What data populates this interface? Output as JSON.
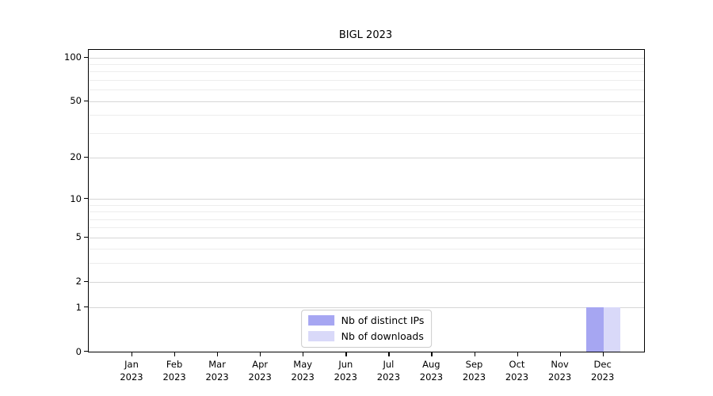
{
  "title": "BIGL 2023",
  "chart_data": {
    "type": "bar",
    "title": "BIGL 2023",
    "xlabel": "",
    "ylabel": "",
    "yscale": "log1p-symlog",
    "ylim": [
      0,
      112
    ],
    "grid": "horizontal-major-and-minor",
    "legend_position": "lower center",
    "categories": [
      {
        "month": "Jan",
        "year": "2023"
      },
      {
        "month": "Feb",
        "year": "2023"
      },
      {
        "month": "Mar",
        "year": "2023"
      },
      {
        "month": "Apr",
        "year": "2023"
      },
      {
        "month": "May",
        "year": "2023"
      },
      {
        "month": "Jun",
        "year": "2023"
      },
      {
        "month": "Jul",
        "year": "2023"
      },
      {
        "month": "Aug",
        "year": "2023"
      },
      {
        "month": "Sep",
        "year": "2023"
      },
      {
        "month": "Oct",
        "year": "2023"
      },
      {
        "month": "Nov",
        "year": "2023"
      },
      {
        "month": "Dec",
        "year": "2023"
      }
    ],
    "series": [
      {
        "name": "Nb of distinct IPs",
        "color": "#a6a6f2",
        "values": [
          0,
          0,
          0,
          0,
          0,
          0,
          0,
          0,
          0,
          0,
          0,
          1
        ]
      },
      {
        "name": "Nb of downloads",
        "color": "#d9d9f9",
        "values": [
          0,
          0,
          0,
          0,
          0,
          0,
          0,
          0,
          0,
          0,
          0,
          1
        ]
      }
    ],
    "ytick_labels": [
      "0",
      "1",
      "2",
      "5",
      "10",
      "20",
      "50",
      "100"
    ],
    "ytick_values": [
      0,
      1,
      2,
      5,
      10,
      20,
      50,
      100
    ],
    "yminor_values": [
      3,
      4,
      6,
      7,
      8,
      9,
      30,
      40,
      60,
      70,
      80,
      90
    ],
    "colors": {
      "major_grid": "#d6d6d6",
      "minor_grid": "#ededed",
      "spine": "#000000",
      "background": "#ffffff"
    }
  }
}
